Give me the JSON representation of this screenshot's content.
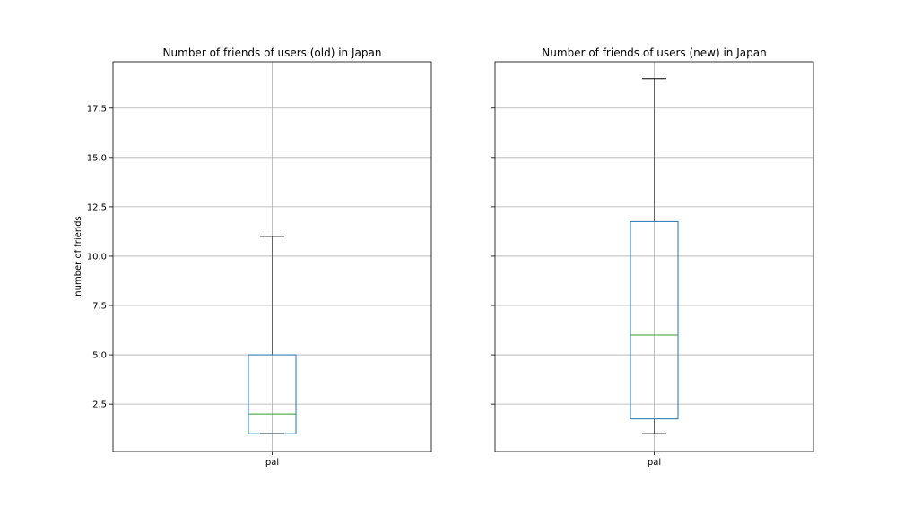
{
  "figure": {
    "background": "#ffffff"
  },
  "chart_data": [
    {
      "type": "box",
      "title": "Number of friends of users (old) in Japan",
      "xlabel": "",
      "ylabel": "number of friends",
      "categories": [
        "pal"
      ],
      "boxes": [
        {
          "label": "pal",
          "whisker_low": 1,
          "q1": 1,
          "median": 2,
          "q3": 5,
          "whisker_high": 11
        }
      ],
      "ylim": [
        0.1,
        19.85
      ],
      "yticks": [
        2.5,
        5.0,
        7.5,
        10.0,
        12.5,
        15.0,
        17.5
      ],
      "ytick_labels": [
        "2.5",
        "5.0",
        "7.5",
        "10.0",
        "12.5",
        "15.0",
        "17.5"
      ],
      "grid": true,
      "colors": {
        "box": "#1f77b4",
        "median": "#2ca02c",
        "cap": "#000000",
        "grid": "#b0b0b0"
      }
    },
    {
      "type": "box",
      "title": "Number of friends of users (new) in Japan",
      "xlabel": "",
      "ylabel": "",
      "categories": [
        "pal"
      ],
      "boxes": [
        {
          "label": "pal",
          "whisker_low": 1,
          "q1": 1.75,
          "median": 6,
          "q3": 11.75,
          "whisker_high": 19
        }
      ],
      "ylim": [
        0.1,
        19.85
      ],
      "yticks": [
        2.5,
        5.0,
        7.5,
        10.0,
        12.5,
        15.0,
        17.5
      ],
      "ytick_labels": [],
      "grid": true,
      "colors": {
        "box": "#1f77b4",
        "median": "#2ca02c",
        "cap": "#000000",
        "grid": "#b0b0b0"
      }
    }
  ]
}
